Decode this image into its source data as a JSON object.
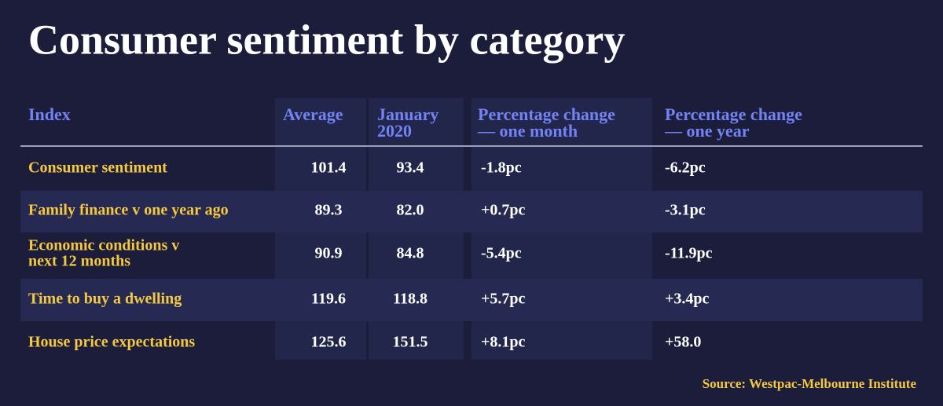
{
  "header": {
    "title": "Consumer sentiment by category"
  },
  "table": {
    "columns": [
      [
        "Index"
      ],
      [
        "Average"
      ],
      [
        "January",
        "2020"
      ],
      [
        "Percentage change",
        "— one month"
      ],
      [
        "Percentage change",
        "— one year"
      ]
    ],
    "rows": [
      [
        [
          "Consumer sentiment"
        ],
        "101.4",
        "93.4",
        "-1.8pc",
        "-6.2pc"
      ],
      [
        [
          "Family finance v one year ago"
        ],
        "89.3",
        "82.0",
        "+0.7pc",
        "-3.1pc"
      ],
      [
        [
          "Economic conditions v",
          "next 12 months"
        ],
        "90.9",
        "84.8",
        "-5.4pc",
        "-11.9pc"
      ],
      [
        [
          "Time to buy a dwelling"
        ],
        "119.6",
        "118.8",
        "+5.7pc",
        "+3.4pc"
      ],
      [
        [
          "House price expectations"
        ],
        "125.6",
        "151.5",
        "+8.1pc",
        "+58.0"
      ]
    ]
  },
  "footer": {
    "source": "Source: Westpac-Melbourne Institute"
  }
}
